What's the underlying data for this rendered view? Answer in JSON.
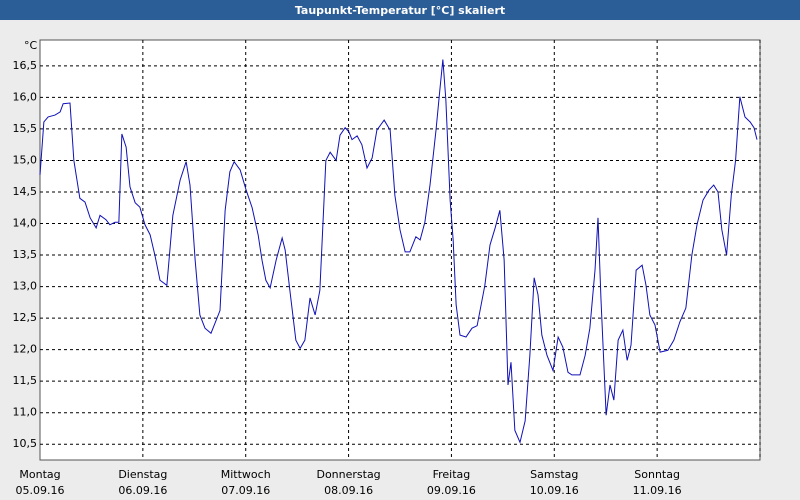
{
  "chart_data": {
    "type": "line",
    "title": "Taupunkt-Temperatur [°C] skaliert",
    "ylabel": "°C",
    "x": [
      0,
      0.9,
      1.9,
      3.5,
      4.7,
      5.4,
      7.0,
      7.9,
      9.3,
      10.5,
      11.7,
      13.1,
      14.0,
      15.4,
      16.3,
      17.5,
      18.4,
      19.1,
      20.1,
      21.0,
      22.2,
      23.3,
      24.5,
      25.7,
      26.8,
      28.0,
      29.6,
      31.0,
      32.7,
      34.1,
      35.0,
      36.2,
      37.3,
      38.5,
      39.9,
      40.6,
      42.0,
      43.2,
      44.3,
      45.3,
      46.7,
      48.1,
      49.5,
      50.9,
      51.8,
      52.7,
      53.7,
      55.1,
      56.5,
      57.2,
      58.3,
      59.7,
      60.7,
      61.8,
      63.0,
      64.2,
      65.3,
      66.7,
      67.7,
      69.1,
      70.0,
      71.2,
      72.1,
      72.8,
      74.0,
      75.1,
      76.3,
      77.5,
      78.6,
      80.3,
      81.7,
      82.8,
      84.0,
      85.2,
      86.3,
      87.7,
      88.7,
      89.8,
      91.0,
      92.4,
      93.3,
      94.0,
      94.7,
      95.7,
      96.4,
      97.1,
      98.0,
      99.4,
      100.8,
      102.0,
      103.8,
      105.0,
      106.2,
      107.3,
      108.3,
      109.2,
      109.9,
      110.8,
      112.0,
      113.2,
      114.3,
      115.3,
      116.2,
      117.1,
      118.3,
      119.7,
      120.9,
      122.0,
      123.2,
      124.1,
      126.0,
      127.2,
      128.3,
      129.5,
      130.2,
      130.9,
      132.1,
      133.0,
      133.9,
      134.9,
      136.0,
      137.0,
      137.9,
      139.1,
      140.5,
      141.4,
      142.3,
      143.5,
      144.7,
      146.5,
      147.9,
      149.3,
      150.7,
      152.1,
      153.3,
      154.7,
      156.1,
      157.2,
      158.2,
      159.1,
      160.2,
      161.3,
      162.3,
      163.3,
      164.5,
      165.7,
      166.6,
      167.3
    ],
    "series": [
      {
        "name": "Taupunkt-Temperatur",
        "color": "#1010b8",
        "values": [
          14.77,
          15.61,
          15.69,
          15.72,
          15.77,
          15.9,
          15.91,
          15.0,
          14.4,
          14.34,
          14.09,
          13.93,
          14.13,
          14.06,
          13.98,
          14.02,
          14.02,
          15.42,
          15.21,
          14.58,
          14.33,
          14.26,
          13.98,
          13.82,
          13.5,
          13.1,
          13.02,
          14.13,
          14.69,
          14.98,
          14.61,
          13.42,
          12.55,
          12.34,
          12.26,
          12.38,
          12.62,
          14.21,
          14.82,
          14.98,
          14.85,
          14.53,
          14.25,
          13.82,
          13.42,
          13.1,
          12.98,
          13.42,
          13.77,
          13.58,
          12.94,
          12.15,
          12.02,
          12.15,
          12.82,
          12.55,
          12.94,
          15.0,
          15.13,
          15.0,
          15.4,
          15.52,
          15.45,
          15.33,
          15.39,
          15.25,
          14.88,
          15.04,
          15.48,
          15.64,
          15.48,
          14.45,
          13.9,
          13.55,
          13.55,
          13.79,
          13.74,
          14.02,
          14.61,
          15.48,
          16.12,
          16.6,
          15.96,
          14.37,
          13.74,
          12.71,
          12.23,
          12.2,
          12.34,
          12.38,
          13.02,
          13.66,
          13.93,
          14.21,
          13.42,
          11.44,
          11.8,
          10.72,
          10.53,
          10.87,
          11.91,
          13.14,
          12.87,
          12.23,
          11.91,
          11.67,
          12.2,
          12.04,
          11.64,
          11.6,
          11.6,
          11.91,
          12.34,
          13.26,
          14.09,
          12.79,
          10.96,
          11.44,
          11.2,
          12.15,
          12.31,
          11.83,
          12.07,
          13.26,
          13.34,
          13.02,
          12.55,
          12.39,
          11.96,
          11.99,
          12.15,
          12.44,
          12.66,
          13.5,
          13.98,
          14.37,
          14.53,
          14.61,
          14.5,
          13.9,
          13.5,
          14.45,
          15.0,
          16.01,
          15.69,
          15.61,
          15.52,
          15.33
        ]
      }
    ],
    "xlim": [
      0,
      168
    ],
    "xticks": [
      {
        "value": 0,
        "label": "Montag",
        "sublabel": "05.09.16"
      },
      {
        "value": 24,
        "label": "Dienstag",
        "sublabel": "06.09.16"
      },
      {
        "value": 48,
        "label": "Mittwoch",
        "sublabel": "07.09.16"
      },
      {
        "value": 72,
        "label": "Donnerstag",
        "sublabel": "08.09.16"
      },
      {
        "value": 96,
        "label": "Freitag",
        "sublabel": "09.09.16"
      },
      {
        "value": 120,
        "label": "Samstag",
        "sublabel": "10.09.16"
      },
      {
        "value": 144,
        "label": "Sonntag",
        "sublabel": "11.09.16"
      }
    ],
    "ylim": [
      10.25,
      16.91
    ],
    "yticks": [
      {
        "value": 10.5,
        "label": "10,5"
      },
      {
        "value": 11,
        "label": "11,0"
      },
      {
        "value": 11.5,
        "label": "11,5"
      },
      {
        "value": 12,
        "label": "12,0"
      },
      {
        "value": 12.5,
        "label": "12,5"
      },
      {
        "value": 13,
        "label": "13,0"
      },
      {
        "value": 13.5,
        "label": "13,5"
      },
      {
        "value": 14,
        "label": "14,0"
      },
      {
        "value": 14.5,
        "label": "14,5"
      },
      {
        "value": 15,
        "label": "15,0"
      },
      {
        "value": 15.5,
        "label": "15,5"
      },
      {
        "value": 16,
        "label": "16,0"
      },
      {
        "value": 16.5,
        "label": "16,5"
      }
    ],
    "grid": true
  }
}
